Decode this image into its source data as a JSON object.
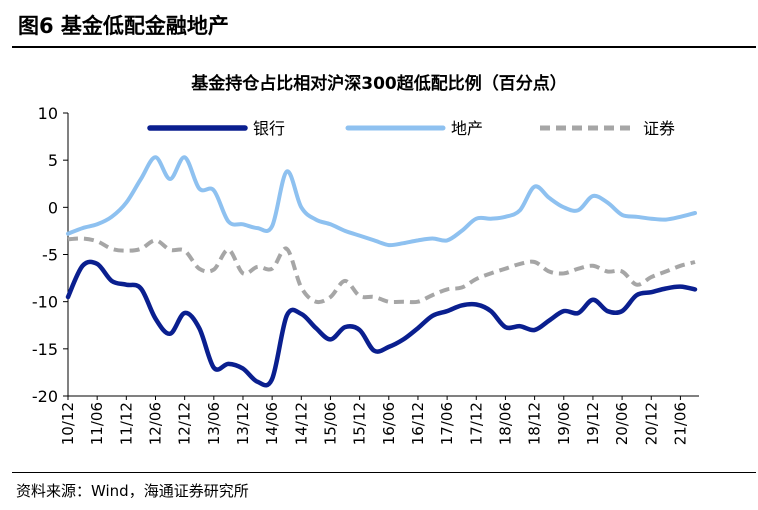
{
  "figure": {
    "title": "图6   基金低配金融地产",
    "source": "资料来源：Wind，海通证券研究所"
  },
  "chart_data": {
    "type": "line",
    "title": "基金持仓占比相对沪深300超低配比例（百分点）",
    "xlabel": "",
    "ylabel": "",
    "ylim": [
      -20,
      10
    ],
    "yticks": [
      10,
      5,
      0,
      -5,
      -10,
      -15,
      -20
    ],
    "grid": false,
    "legend_position": "top",
    "x": [
      "10/12",
      "11/03",
      "11/06",
      "11/09",
      "11/12",
      "12/03",
      "12/06",
      "12/09",
      "12/12",
      "13/03",
      "13/06",
      "13/09",
      "13/12",
      "14/03",
      "14/06",
      "14/09",
      "14/12",
      "15/03",
      "15/06",
      "15/09",
      "15/12",
      "16/03",
      "16/06",
      "16/09",
      "16/12",
      "17/03",
      "17/06",
      "17/09",
      "17/12",
      "18/03",
      "18/06",
      "18/09",
      "18/12",
      "19/03",
      "19/06",
      "19/09",
      "19/12",
      "20/03",
      "20/06",
      "20/09",
      "20/12",
      "21/03",
      "21/06",
      "21/09"
    ],
    "xtick_labels": [
      "10/12",
      "11/06",
      "11/12",
      "12/06",
      "12/12",
      "13/06",
      "13/12",
      "14/06",
      "14/12",
      "15/06",
      "15/12",
      "16/06",
      "16/12",
      "17/06",
      "17/12",
      "18/06",
      "18/12",
      "19/06",
      "19/12",
      "20/06",
      "20/12",
      "21/06"
    ],
    "series": [
      {
        "name": "银行",
        "color": "#0a1f8f",
        "style": "solid-thick",
        "values": [
          -9.5,
          -6.2,
          -6.0,
          -7.8,
          -8.2,
          -8.6,
          -11.8,
          -13.4,
          -11.2,
          -12.8,
          -17.0,
          -16.6,
          -17.1,
          -18.5,
          -18.2,
          -11.5,
          -11.3,
          -12.8,
          -14.0,
          -12.7,
          -13.0,
          -15.2,
          -14.8,
          -14.0,
          -12.8,
          -11.5,
          -11.0,
          -10.4,
          -10.3,
          -11.0,
          -12.7,
          -12.6,
          -13.0,
          -12.0,
          -11.0,
          -11.2,
          -9.8,
          -11.0,
          -11.0,
          -9.3,
          -9.0,
          -8.6,
          -8.4,
          -8.7
        ]
      },
      {
        "name": "地产",
        "color": "#8ec1f0",
        "style": "solid",
        "values": [
          -2.8,
          -2.2,
          -1.8,
          -1.0,
          0.5,
          3.0,
          5.3,
          3.0,
          5.3,
          2.0,
          1.8,
          -1.5,
          -1.8,
          -2.2,
          -2.0,
          3.8,
          0.0,
          -1.3,
          -1.8,
          -2.5,
          -3.0,
          -3.5,
          -4.0,
          -3.8,
          -3.5,
          -3.3,
          -3.5,
          -2.5,
          -1.2,
          -1.2,
          -1.0,
          -0.3,
          2.2,
          1.0,
          0.0,
          -0.3,
          1.2,
          0.5,
          -0.8,
          -1.0,
          -1.2,
          -1.3,
          -1.0,
          -0.6
        ]
      },
      {
        "name": "证券",
        "color": "#a6a6a6",
        "style": "dashed",
        "values": [
          -3.4,
          -3.3,
          -3.6,
          -4.4,
          -4.6,
          -4.4,
          -3.5,
          -4.5,
          -4.6,
          -6.5,
          -6.6,
          -4.5,
          -7.0,
          -6.3,
          -6.5,
          -4.4,
          -8.5,
          -10.0,
          -9.5,
          -7.8,
          -9.4,
          -9.5,
          -10.0,
          -10.0,
          -10.0,
          -9.3,
          -8.7,
          -8.5,
          -7.6,
          -7.0,
          -6.5,
          -6.0,
          -5.8,
          -6.8,
          -7.0,
          -6.5,
          -6.2,
          -6.8,
          -6.8,
          -8.2,
          -7.4,
          -6.8,
          -6.2,
          -5.8
        ]
      }
    ]
  }
}
